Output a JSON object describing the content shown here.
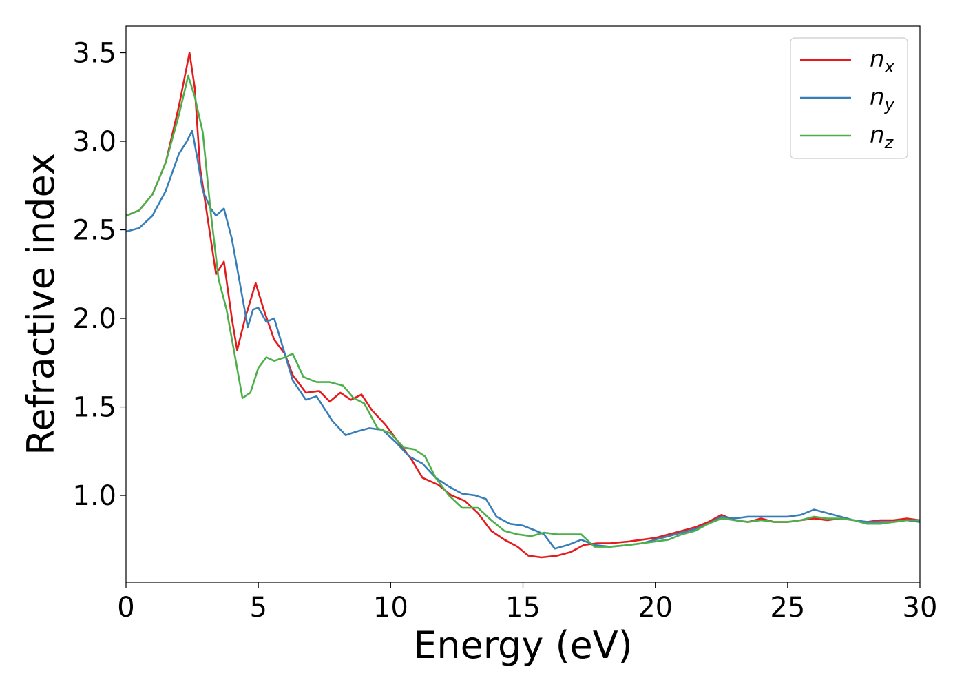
{
  "chart_data": {
    "type": "line",
    "xlabel": "Energy (eV)",
    "ylabel": "Refractive index",
    "xlim": [
      0,
      30
    ],
    "ylim": [
      0.51,
      3.65
    ],
    "xticks": [
      "0",
      "5",
      "10",
      "15",
      "20",
      "25",
      "30"
    ],
    "yticks": [
      "1.0",
      "1.5",
      "2.0",
      "2.5",
      "3.0",
      "3.5"
    ],
    "grid": false,
    "legend_position": "top-right",
    "series": [
      {
        "name": "n",
        "subscript": "x",
        "color": "#e41a1c",
        "points": [
          [
            0,
            2.58
          ],
          [
            0.5,
            2.61
          ],
          [
            1.0,
            2.7
          ],
          [
            1.5,
            2.88
          ],
          [
            2.0,
            3.2
          ],
          [
            2.4,
            3.5
          ],
          [
            2.6,
            3.3
          ],
          [
            2.8,
            2.85
          ],
          [
            3.0,
            2.65
          ],
          [
            3.2,
            2.45
          ],
          [
            3.4,
            2.25
          ],
          [
            3.7,
            2.32
          ],
          [
            4.0,
            2.0
          ],
          [
            4.2,
            1.82
          ],
          [
            4.5,
            2.0
          ],
          [
            4.9,
            2.2
          ],
          [
            5.2,
            2.05
          ],
          [
            5.6,
            1.88
          ],
          [
            6.0,
            1.8
          ],
          [
            6.3,
            1.68
          ],
          [
            6.8,
            1.58
          ],
          [
            7.3,
            1.59
          ],
          [
            7.7,
            1.53
          ],
          [
            8.1,
            1.58
          ],
          [
            8.5,
            1.54
          ],
          [
            8.9,
            1.57
          ],
          [
            9.3,
            1.48
          ],
          [
            9.8,
            1.4
          ],
          [
            10.3,
            1.3
          ],
          [
            10.8,
            1.2
          ],
          [
            11.2,
            1.1
          ],
          [
            11.8,
            1.06
          ],
          [
            12.3,
            1.0
          ],
          [
            12.8,
            0.97
          ],
          [
            13.3,
            0.9
          ],
          [
            13.8,
            0.8
          ],
          [
            14.3,
            0.75
          ],
          [
            14.8,
            0.71
          ],
          [
            15.2,
            0.66
          ],
          [
            15.7,
            0.65
          ],
          [
            16.3,
            0.66
          ],
          [
            16.8,
            0.68
          ],
          [
            17.3,
            0.72
          ],
          [
            17.8,
            0.73
          ],
          [
            18.3,
            0.73
          ],
          [
            19.0,
            0.74
          ],
          [
            19.5,
            0.75
          ],
          [
            20.0,
            0.76
          ],
          [
            20.5,
            0.78
          ],
          [
            21.0,
            0.8
          ],
          [
            21.5,
            0.82
          ],
          [
            22.0,
            0.85
          ],
          [
            22.5,
            0.89
          ],
          [
            23.0,
            0.86
          ],
          [
            23.5,
            0.85
          ],
          [
            24.0,
            0.87
          ],
          [
            24.5,
            0.85
          ],
          [
            25.0,
            0.85
          ],
          [
            25.5,
            0.86
          ],
          [
            26.0,
            0.87
          ],
          [
            26.5,
            0.86
          ],
          [
            27.0,
            0.87
          ],
          [
            27.5,
            0.86
          ],
          [
            28.0,
            0.85
          ],
          [
            28.5,
            0.86
          ],
          [
            29.0,
            0.86
          ],
          [
            29.5,
            0.87
          ],
          [
            30.0,
            0.86
          ]
        ]
      },
      {
        "name": "n",
        "subscript": "y",
        "color": "#377eb8",
        "points": [
          [
            0,
            2.49
          ],
          [
            0.5,
            2.51
          ],
          [
            1.0,
            2.58
          ],
          [
            1.5,
            2.72
          ],
          [
            2.0,
            2.93
          ],
          [
            2.3,
            3.0
          ],
          [
            2.5,
            3.06
          ],
          [
            2.7,
            2.9
          ],
          [
            2.9,
            2.72
          ],
          [
            3.2,
            2.62
          ],
          [
            3.4,
            2.58
          ],
          [
            3.7,
            2.62
          ],
          [
            4.0,
            2.45
          ],
          [
            4.3,
            2.2
          ],
          [
            4.6,
            1.95
          ],
          [
            4.8,
            2.05
          ],
          [
            5.0,
            2.06
          ],
          [
            5.3,
            1.98
          ],
          [
            5.6,
            2.0
          ],
          [
            5.9,
            1.85
          ],
          [
            6.3,
            1.65
          ],
          [
            6.8,
            1.54
          ],
          [
            7.2,
            1.56
          ],
          [
            7.8,
            1.42
          ],
          [
            8.3,
            1.34
          ],
          [
            8.7,
            1.36
          ],
          [
            9.2,
            1.38
          ],
          [
            9.7,
            1.37
          ],
          [
            10.2,
            1.3
          ],
          [
            10.7,
            1.22
          ],
          [
            11.2,
            1.18
          ],
          [
            11.7,
            1.1
          ],
          [
            12.2,
            1.05
          ],
          [
            12.7,
            1.01
          ],
          [
            13.2,
            1.0
          ],
          [
            13.6,
            0.98
          ],
          [
            14.0,
            0.88
          ],
          [
            14.5,
            0.84
          ],
          [
            15.0,
            0.83
          ],
          [
            15.5,
            0.8
          ],
          [
            15.8,
            0.78
          ],
          [
            16.2,
            0.7
          ],
          [
            16.7,
            0.72
          ],
          [
            17.2,
            0.75
          ],
          [
            17.7,
            0.72
          ],
          [
            18.3,
            0.71
          ],
          [
            19.0,
            0.72
          ],
          [
            19.5,
            0.73
          ],
          [
            20.0,
            0.75
          ],
          [
            20.5,
            0.77
          ],
          [
            21.0,
            0.79
          ],
          [
            21.5,
            0.81
          ],
          [
            22.0,
            0.84
          ],
          [
            22.5,
            0.88
          ],
          [
            23.0,
            0.87
          ],
          [
            23.5,
            0.88
          ],
          [
            24.0,
            0.88
          ],
          [
            24.5,
            0.88
          ],
          [
            25.0,
            0.88
          ],
          [
            25.5,
            0.89
          ],
          [
            26.0,
            0.92
          ],
          [
            26.5,
            0.9
          ],
          [
            27.0,
            0.88
          ],
          [
            27.5,
            0.86
          ],
          [
            28.0,
            0.85
          ],
          [
            28.5,
            0.85
          ],
          [
            29.0,
            0.85
          ],
          [
            29.5,
            0.86
          ],
          [
            30.0,
            0.85
          ]
        ]
      },
      {
        "name": "n",
        "subscript": "z",
        "color": "#4daf4a",
        "points": [
          [
            0,
            2.58
          ],
          [
            0.5,
            2.61
          ],
          [
            1.0,
            2.7
          ],
          [
            1.5,
            2.88
          ],
          [
            2.0,
            3.15
          ],
          [
            2.35,
            3.37
          ],
          [
            2.6,
            3.25
          ],
          [
            2.9,
            3.05
          ],
          [
            3.2,
            2.6
          ],
          [
            3.5,
            2.22
          ],
          [
            3.8,
            2.05
          ],
          [
            4.1,
            1.8
          ],
          [
            4.4,
            1.55
          ],
          [
            4.7,
            1.58
          ],
          [
            5.0,
            1.72
          ],
          [
            5.3,
            1.78
          ],
          [
            5.6,
            1.76
          ],
          [
            6.0,
            1.78
          ],
          [
            6.3,
            1.8
          ],
          [
            6.7,
            1.67
          ],
          [
            7.2,
            1.64
          ],
          [
            7.7,
            1.64
          ],
          [
            8.2,
            1.62
          ],
          [
            8.6,
            1.55
          ],
          [
            9.0,
            1.52
          ],
          [
            9.5,
            1.38
          ],
          [
            10.0,
            1.35
          ],
          [
            10.5,
            1.27
          ],
          [
            10.9,
            1.26
          ],
          [
            11.3,
            1.22
          ],
          [
            11.7,
            1.1
          ],
          [
            12.2,
            1.0
          ],
          [
            12.7,
            0.93
          ],
          [
            13.3,
            0.93
          ],
          [
            13.8,
            0.86
          ],
          [
            14.3,
            0.8
          ],
          [
            14.8,
            0.78
          ],
          [
            15.3,
            0.77
          ],
          [
            15.8,
            0.79
          ],
          [
            16.3,
            0.78
          ],
          [
            16.8,
            0.78
          ],
          [
            17.2,
            0.78
          ],
          [
            17.7,
            0.71
          ],
          [
            18.3,
            0.71
          ],
          [
            19.0,
            0.72
          ],
          [
            19.5,
            0.73
          ],
          [
            20.0,
            0.74
          ],
          [
            20.5,
            0.75
          ],
          [
            21.0,
            0.78
          ],
          [
            21.5,
            0.8
          ],
          [
            22.0,
            0.84
          ],
          [
            22.5,
            0.87
          ],
          [
            23.0,
            0.86
          ],
          [
            23.5,
            0.85
          ],
          [
            24.0,
            0.86
          ],
          [
            24.5,
            0.85
          ],
          [
            25.0,
            0.85
          ],
          [
            25.5,
            0.86
          ],
          [
            26.0,
            0.88
          ],
          [
            26.5,
            0.87
          ],
          [
            27.0,
            0.87
          ],
          [
            27.5,
            0.86
          ],
          [
            28.0,
            0.84
          ],
          [
            28.5,
            0.84
          ],
          [
            29.0,
            0.85
          ],
          [
            29.5,
            0.86
          ],
          [
            30.0,
            0.86
          ]
        ]
      }
    ]
  }
}
